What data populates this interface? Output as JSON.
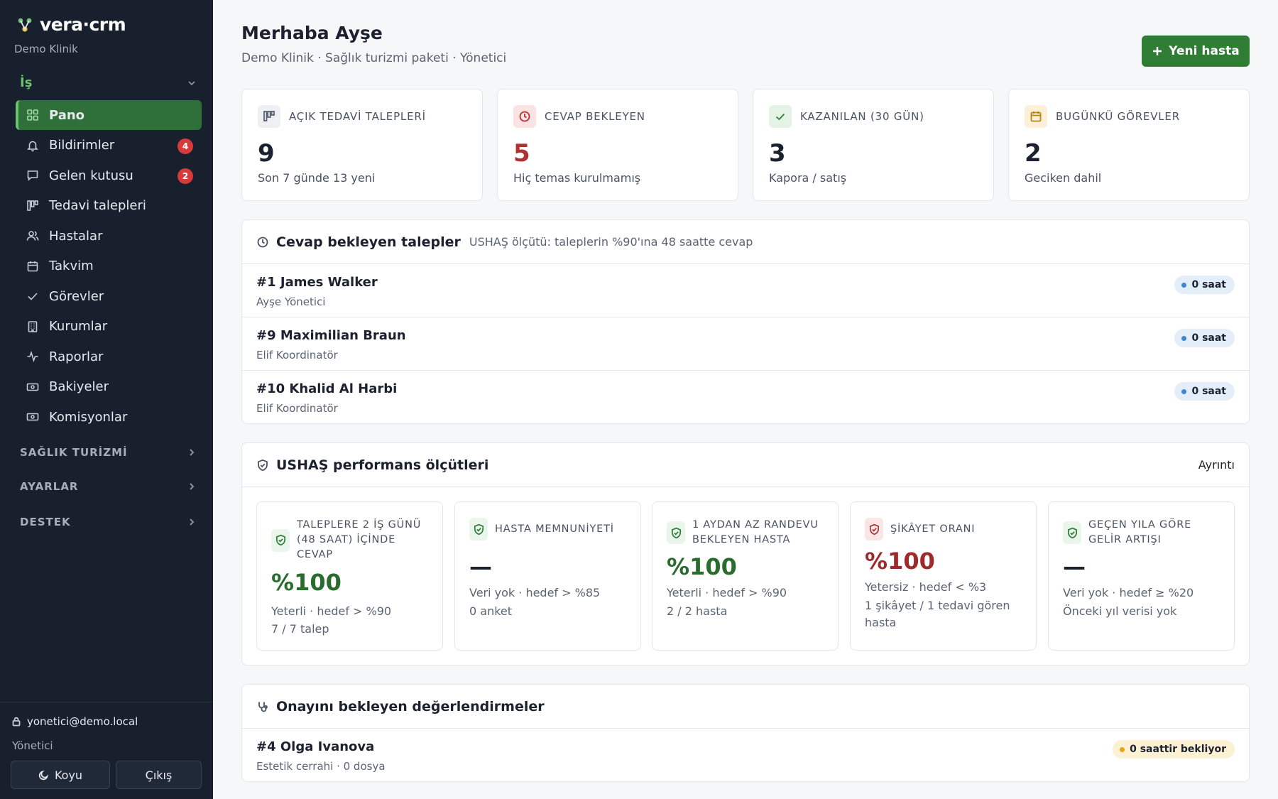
{
  "brand": {
    "name": "vera·crm",
    "subtitle": "Demo Klinik"
  },
  "sidebar": {
    "section_label": "İş",
    "items": [
      {
        "label": "Pano",
        "icon": "grid-icon",
        "active": true
      },
      {
        "label": "Bildirimler",
        "icon": "bell-icon",
        "badge": "4"
      },
      {
        "label": "Gelen kutusu",
        "icon": "message-icon",
        "badge": "2"
      },
      {
        "label": "Tedavi talepleri",
        "icon": "kanban-icon"
      },
      {
        "label": "Hastalar",
        "icon": "users-icon"
      },
      {
        "label": "Takvim",
        "icon": "calendar-icon"
      },
      {
        "label": "Görevler",
        "icon": "check-icon"
      },
      {
        "label": "Kurumlar",
        "icon": "building-icon"
      },
      {
        "label": "Raporlar",
        "icon": "activity-icon"
      },
      {
        "label": "Bakiyeler",
        "icon": "banknote-icon"
      },
      {
        "label": "Komisyonlar",
        "icon": "banknote-icon"
      }
    ],
    "groups": [
      "SAĞLIK TURİZMİ",
      "AYARLAR",
      "DESTEK"
    ],
    "user_email": "yonetici@demo.local",
    "user_role": "Yönetici",
    "theme_button": "Koyu",
    "logout_button": "Çıkış"
  },
  "header": {
    "title": "Merhaba Ayşe",
    "subtitle": "Demo Klinik · Sağlık turizmi paketi · Yönetici",
    "new_button": "Yeni hasta"
  },
  "stats": [
    {
      "label": "AÇIK TEDAVİ TALEPLERİ",
      "value": "9",
      "desc": "Son 7 günde 13 yeni",
      "color": "#5b6373"
    },
    {
      "label": "CEVAP BEKLEYEN",
      "value": "5",
      "desc": "Hiç temas kurulmamış",
      "color": "#b03131"
    },
    {
      "label": "KAZANILAN (30 GÜN)",
      "value": "3",
      "desc": "Kapora / satış",
      "color": "#2f7d35"
    },
    {
      "label": "BUGÜNKÜ GÖREVLER",
      "value": "2",
      "desc": "Geciken dahil",
      "color": "#b8860b"
    }
  ],
  "pending": {
    "title": "Cevap bekleyen talepler",
    "note": "USHAŞ ölçütü: taleplerin %90'ına 48 saatte cevap",
    "rows": [
      {
        "title": "#1 James Walker",
        "sub": "Ayşe Yönetici",
        "badge": "0 saat"
      },
      {
        "title": "#9 Maximilian Braun",
        "sub": "Elif Koordinatör",
        "badge": "0 saat"
      },
      {
        "title": "#10 Khalid Al Harbi",
        "sub": "Elif Koordinatör",
        "badge": "0 saat"
      }
    ]
  },
  "performance": {
    "title": "USHAŞ performans ölçütleri",
    "link": "Ayrıntı",
    "metrics": [
      {
        "title": "TALEPLERE 2 İŞ GÜNÜ (48 SAAT) İÇİNDE CEVAP",
        "value": "%100",
        "line1": "Yeterli · hedef > %90",
        "line2": "7 / 7 talep",
        "status": "ok"
      },
      {
        "title": "HASTA MEMNUNİYETİ",
        "value": "—",
        "line1": "Veri yok · hedef > %85",
        "line2": "0 anket",
        "status": "none"
      },
      {
        "title": "1 AYDAN AZ RANDEVU BEKLEYEN HASTA",
        "value": "%100",
        "line1": "Yeterli · hedef > %90",
        "line2": "2 / 2 hasta",
        "status": "ok"
      },
      {
        "title": "ŞİKÂYET ORANI",
        "value": "%100",
        "line1": "Yetersiz · hedef < %3",
        "line2": "1 şikâyet / 1 tedavi gören hasta",
        "status": "bad"
      },
      {
        "title": "GEÇEN YILA GÖRE GELİR ARTIŞI",
        "value": "—",
        "line1": "Veri yok · hedef ≥ %20",
        "line2": "Önceki yıl verisi yok",
        "status": "none"
      }
    ]
  },
  "reviews": {
    "title": "Onayını bekleyen değerlendirmeler",
    "rows": [
      {
        "title": "#4 Olga Ivanova",
        "sub": "Estetik cerrahi · 0 dosya",
        "badge": "0 saattir bekliyor"
      }
    ]
  },
  "colors": {
    "accent": "#2f7d35",
    "sidebar_bg": "#18202e",
    "danger": "#d63b3b"
  }
}
